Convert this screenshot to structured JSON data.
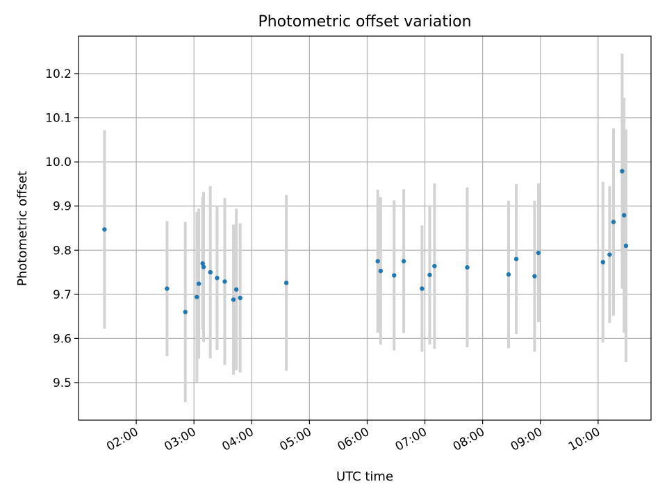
{
  "chart_data": {
    "type": "scatter",
    "title": "Photometric offset variation",
    "xlabel": "UTC time",
    "ylabel": "Photometric offset",
    "xlim": [
      "01:00",
      "10:55"
    ],
    "ylim": [
      9.415,
      10.285
    ],
    "x_ticks": [
      "02:00",
      "03:00",
      "04:00",
      "05:00",
      "06:00",
      "07:00",
      "08:00",
      "09:00",
      "10:00"
    ],
    "y_ticks": [
      "9.5",
      "9.6",
      "9.7",
      "9.8",
      "9.9",
      "10.0",
      "10.1",
      "10.2"
    ],
    "grid": true,
    "marker_color": "#1f77b4",
    "errorbar_color": "#d3d3d3",
    "points": [
      {
        "x": "01:27",
        "y": 9.847,
        "err": 0.225
      },
      {
        "x": "02:32",
        "y": 9.713,
        "err": 0.153
      },
      {
        "x": "02:51",
        "y": 9.66,
        "err": 0.204
      },
      {
        "x": "03:03",
        "y": 9.694,
        "err": 0.193
      },
      {
        "x": "03:05",
        "y": 9.724,
        "err": 0.17
      },
      {
        "x": "03:09",
        "y": 9.77,
        "err": 0.15
      },
      {
        "x": "03:10",
        "y": 9.762,
        "err": 0.17
      },
      {
        "x": "03:17",
        "y": 9.75,
        "err": 0.195
      },
      {
        "x": "03:24",
        "y": 9.737,
        "err": 0.163
      },
      {
        "x": "03:32",
        "y": 9.729,
        "err": 0.189
      },
      {
        "x": "03:41",
        "y": 9.688,
        "err": 0.17
      },
      {
        "x": "03:44",
        "y": 9.711,
        "err": 0.183
      },
      {
        "x": "03:48",
        "y": 9.692,
        "err": 0.169
      },
      {
        "x": "04:36",
        "y": 9.726,
        "err": 0.199
      },
      {
        "x": "06:11",
        "y": 9.775,
        "err": 0.162
      },
      {
        "x": "06:14",
        "y": 9.753,
        "err": 0.167
      },
      {
        "x": "06:28",
        "y": 9.743,
        "err": 0.17
      },
      {
        "x": "06:38",
        "y": 9.775,
        "err": 0.163
      },
      {
        "x": "06:57",
        "y": 9.713,
        "err": 0.143
      },
      {
        "x": "07:05",
        "y": 9.744,
        "err": 0.158
      },
      {
        "x": "07:10",
        "y": 9.764,
        "err": 0.187
      },
      {
        "x": "07:44",
        "y": 9.761,
        "err": 0.181
      },
      {
        "x": "08:27",
        "y": 9.745,
        "err": 0.167
      },
      {
        "x": "08:35",
        "y": 9.78,
        "err": 0.17
      },
      {
        "x": "08:54",
        "y": 9.741,
        "err": 0.171
      },
      {
        "x": "08:58",
        "y": 9.794,
        "err": 0.157
      },
      {
        "x": "10:05",
        "y": 9.773,
        "err": 0.182
      },
      {
        "x": "10:12",
        "y": 9.79,
        "err": 0.155
      },
      {
        "x": "10:16",
        "y": 9.864,
        "err": 0.212
      },
      {
        "x": "10:25",
        "y": 9.979,
        "err": 0.266
      },
      {
        "x": "10:27",
        "y": 9.879,
        "err": 0.266
      },
      {
        "x": "10:29",
        "y": 9.81,
        "err": 0.263
      }
    ]
  }
}
